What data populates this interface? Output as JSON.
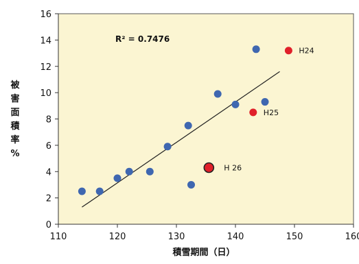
{
  "chart_data": {
    "type": "scatter",
    "xlabel": "積雪期間（日）",
    "ylabel": "被害面積率%",
    "xlim": [
      110,
      160
    ],
    "ylim": [
      0,
      16
    ],
    "xticks": [
      110,
      120,
      130,
      140,
      150,
      160
    ],
    "yticks": [
      0,
      2,
      4,
      6,
      8,
      10,
      12,
      14,
      16
    ],
    "grid": false,
    "background": "#fbf5d2",
    "r_squared_text": "R² = 0.7476",
    "series": [
      {
        "color": "#3f67b0",
        "points": [
          {
            "x": 114,
            "y": 2.5
          },
          {
            "x": 117,
            "y": 2.5
          },
          {
            "x": 120,
            "y": 3.5
          },
          {
            "x": 122,
            "y": 4.0
          },
          {
            "x": 125.5,
            "y": 4.0
          },
          {
            "x": 128.5,
            "y": 5.9
          },
          {
            "x": 132,
            "y": 7.5
          },
          {
            "x": 132.5,
            "y": 3.0
          },
          {
            "x": 137,
            "y": 9.9
          },
          {
            "x": 140,
            "y": 9.1
          },
          {
            "x": 143.5,
            "y": 13.3
          },
          {
            "x": 145,
            "y": 9.3
          }
        ]
      },
      {
        "color": "#e0202a",
        "points": [
          {
            "x": 149,
            "y": 13.2,
            "label": "H24"
          },
          {
            "x": 143,
            "y": 8.5,
            "label": "H25"
          },
          {
            "x": 135.5,
            "y": 4.3,
            "label": "H 26",
            "highlight": true
          }
        ]
      }
    ],
    "trendline": {
      "x": [
        114,
        147.5
      ],
      "y": [
        1.3,
        11.6
      ],
      "color": "#222222"
    }
  }
}
